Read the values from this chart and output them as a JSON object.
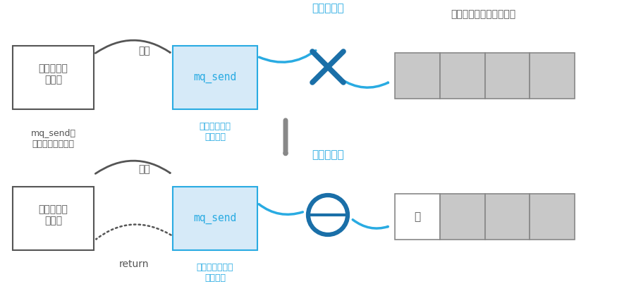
{
  "blue_color": "#29abe2",
  "dark_blue": "#1a6fa8",
  "gray_color": "#808080",
  "dark_gray": "#555555",
  "light_blue_fill": "#d6eaf8",
  "light_blue_border": "#29abe2",
  "box_fill": "#c8c8c8",
  "box_border": "#888888",
  "white_fill": "#ffffff",
  "text_dark": "#555555",
  "arrow_gray": "#707070",
  "top_caller_label": "呼び出し元\nの関数",
  "top_caller_sublabel": "mq_sendが\n完了するまで待機",
  "top_exec_label": "実行",
  "top_mq_label": "mq_send",
  "top_mq_sublabel": "空きができる\nまで待機",
  "top_enqueue_label": "エンキュー",
  "top_queue_title": "メッセージキューが満杯",
  "bot_caller_label": "呼び出し元\nの関数",
  "bot_exec_label": "実行",
  "bot_return_label": "return",
  "bot_mq_label": "mq_send",
  "bot_mq_sublabel": "エンキューして\n関数終了",
  "bot_enqueue_label": "エンキュー",
  "bot_queue_empty_label": "空"
}
